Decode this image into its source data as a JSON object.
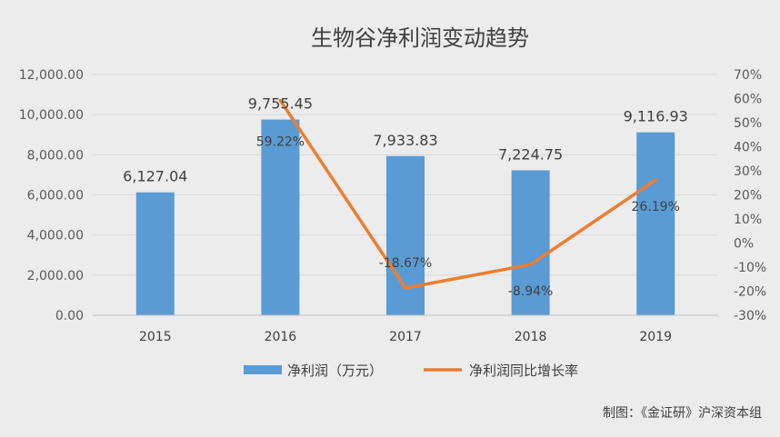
{
  "chart_data": {
    "type": "bar",
    "title": "生物谷净利润变动趋势",
    "categories": [
      "2015",
      "2016",
      "2017",
      "2018",
      "2019"
    ],
    "series": [
      {
        "name": "净利润（万元）",
        "type": "bar",
        "axis": "left",
        "values": [
          6127.04,
          9755.45,
          7933.83,
          7224.75,
          9116.93
        ],
        "labels": [
          "6,127.04",
          "9,755.45",
          "7,933.83",
          "7,224.75",
          "9,116.93"
        ]
      },
      {
        "name": "净利润同比增长率",
        "type": "line",
        "axis": "right",
        "values": [
          null,
          59.22,
          -18.67,
          -8.94,
          26.19
        ],
        "labels": [
          "",
          "59.22%",
          "-18.67%",
          "-8.94%",
          "26.19%"
        ]
      }
    ],
    "y_left": {
      "min": 0,
      "max": 12000,
      "ticks": [
        0,
        2000,
        4000,
        6000,
        8000,
        10000,
        12000
      ],
      "tick_labels": [
        "0.00",
        "2,000.00",
        "4,000.00",
        "6,000.00",
        "8,000.00",
        "10,000.00",
        "12,000.00"
      ]
    },
    "y_right": {
      "min": -30,
      "max": 70,
      "ticks": [
        -30,
        -20,
        -10,
        0,
        10,
        20,
        30,
        40,
        50,
        60,
        70
      ],
      "tick_labels": [
        "-30%",
        "-20%",
        "-10%",
        "0%",
        "10%",
        "20%",
        "30%",
        "40%",
        "50%",
        "60%",
        "70%"
      ]
    },
    "grid": true,
    "legend_position": "bottom",
    "colors": {
      "bar": "#5b9bd5",
      "line": "#ed7d31"
    },
    "footer": "制图：《金证研》沪深资本组"
  }
}
